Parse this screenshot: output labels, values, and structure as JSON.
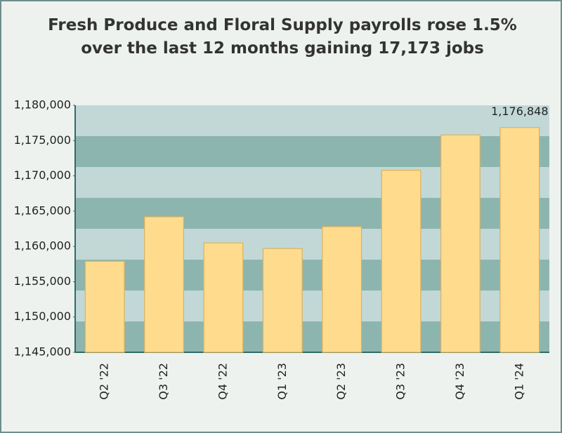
{
  "chart_data": {
    "type": "bar",
    "title": "Fresh Produce and Floral Supply payrolls rose 1.5% over the last 12 months gaining 17,173 jobs",
    "categories": [
      "Q2 '22",
      "Q3 '22",
      "Q4 '22",
      "Q1 '23",
      "Q2 '23",
      "Q3 '23",
      "Q4 '23",
      "Q1 '24"
    ],
    "values": [
      1157900,
      1164200,
      1160500,
      1159700,
      1162800,
      1170800,
      1175800,
      1176848
    ],
    "value_labels": [
      null,
      null,
      null,
      null,
      null,
      null,
      null,
      "1,176,848"
    ],
    "color": "#fedb8d",
    "ylim": [
      1145000,
      1180000
    ],
    "yticks": [
      {
        "value": 1145000,
        "label": "1,145,000"
      },
      {
        "value": 1150000,
        "label": "1,150,000"
      },
      {
        "value": 1155000,
        "label": "1,155,000"
      },
      {
        "value": 1160000,
        "label": "1,160,000"
      },
      {
        "value": 1165000,
        "label": "1,165,000"
      },
      {
        "value": 1170000,
        "label": "1,170,000"
      },
      {
        "value": 1175000,
        "label": "1,175,000"
      },
      {
        "value": 1180000,
        "label": "1,180,000"
      }
    ]
  }
}
